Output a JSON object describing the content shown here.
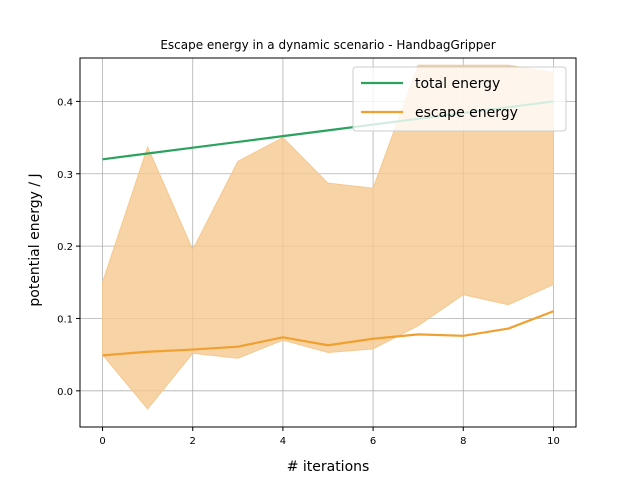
{
  "chart_data": {
    "type": "line",
    "title": "Escape energy in a dynamic scenario - HandbagGripper",
    "xlabel": "# iterations",
    "ylabel": "potential energy / J",
    "xlim": [
      -0.5,
      10.5
    ],
    "ylim": [
      -0.05,
      0.46
    ],
    "x_ticks": [
      0,
      2,
      4,
      6,
      8,
      10
    ],
    "y_ticks": [
      0.0,
      0.1,
      0.2,
      0.3,
      0.4
    ],
    "grid": true,
    "legend_position": "top-right",
    "x": [
      0,
      1,
      2,
      3,
      4,
      5,
      6,
      7,
      8,
      9,
      10
    ],
    "series": [
      {
        "name": "total energy",
        "color": "#2ca25f",
        "values": [
          0.32,
          0.328,
          0.336,
          0.344,
          0.352,
          0.36,
          0.368,
          0.376,
          0.384,
          0.392,
          0.4
        ]
      },
      {
        "name": "escape energy",
        "color": "#f0a030",
        "values": [
          0.049,
          0.054,
          0.057,
          0.061,
          0.074,
          0.063,
          0.072,
          0.078,
          0.076,
          0.086,
          0.11
        ],
        "band_lower": [
          0.05,
          -0.025,
          0.052,
          0.045,
          0.07,
          0.053,
          0.058,
          0.09,
          0.133,
          0.119,
          0.147
        ],
        "band_upper": [
          0.15,
          0.337,
          0.195,
          0.317,
          0.35,
          0.287,
          0.28,
          0.45,
          0.45,
          0.45,
          0.44
        ],
        "band_color": "#f5c88f"
      }
    ]
  }
}
